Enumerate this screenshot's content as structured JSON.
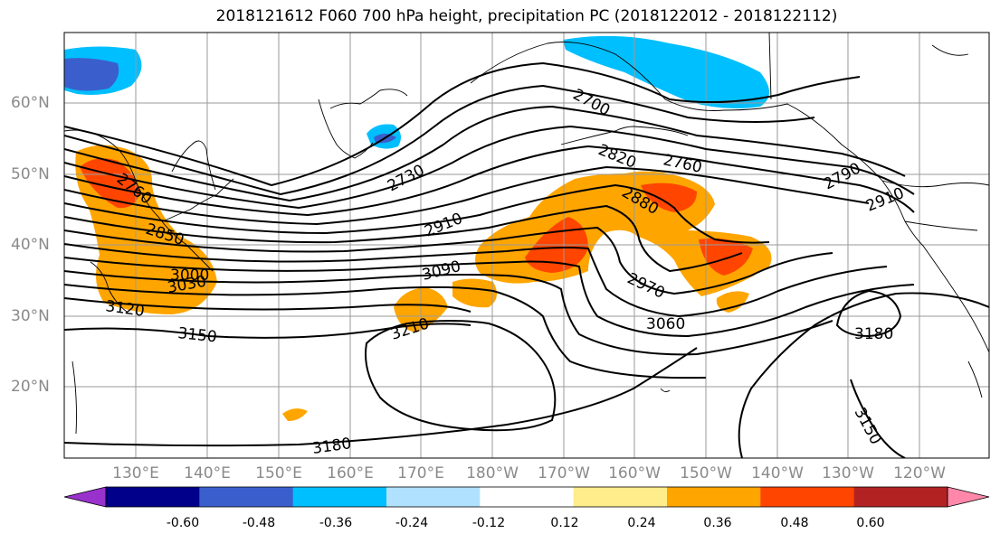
{
  "title": "2018121612 F060 700 hPa height, precipitation PC (2018122012 - 2018122112)",
  "map": {
    "lat_labels": [
      "60°N",
      "50°N",
      "40°N",
      "30°N",
      "20°N"
    ],
    "lon_labels": [
      "130°E",
      "140°E",
      "150°E",
      "160°E",
      "170°E",
      "180°W",
      "170°W",
      "160°W",
      "150°W",
      "140°W",
      "130°W",
      "120°W"
    ],
    "contour_labels": [
      "2760",
      "2850",
      "3000",
      "3030",
      "3120",
      "3150",
      "2730",
      "2910",
      "3090",
      "3210",
      "2700",
      "2820",
      "2880",
      "2970",
      "3060",
      "2760",
      "2790",
      "2910",
      "3180",
      "3150",
      "3180"
    ]
  },
  "colorbar": {
    "ticks": [
      "-0.60",
      "-0.48",
      "-0.36",
      "-0.24",
      "-0.12",
      "0.12",
      "0.24",
      "0.36",
      "0.48",
      "0.60"
    ],
    "colors": [
      "#9932cc",
      "#00008b",
      "#3a5fcd",
      "#00bfff",
      "#b0e2ff",
      "#ffffff",
      "#ffec8b",
      "#ffa500",
      "#ff4500",
      "#b22222",
      "#ff88aa"
    ]
  }
}
